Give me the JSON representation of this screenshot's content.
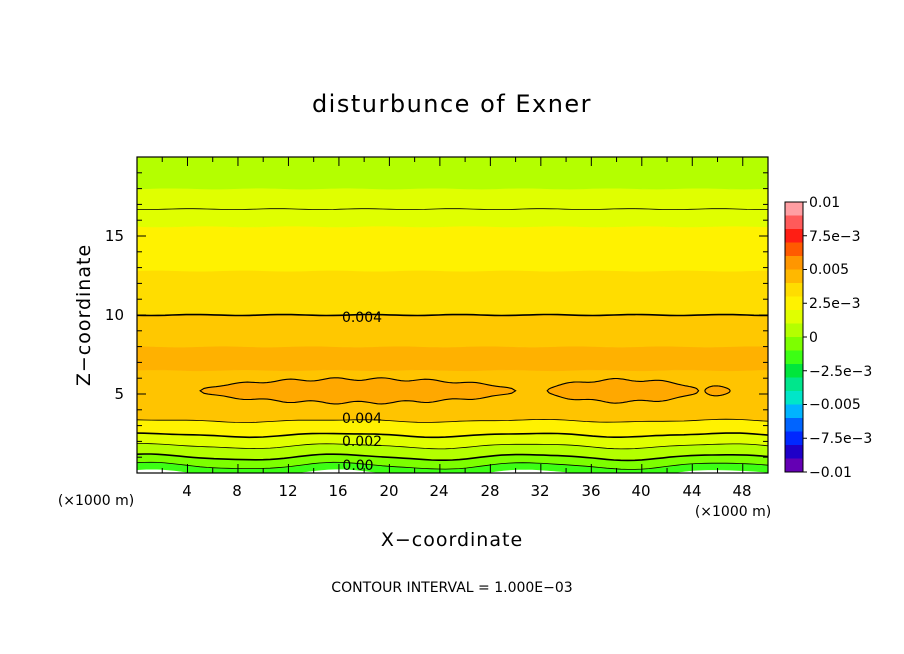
{
  "chart_data": {
    "type": "heatmap",
    "title": "disturbunce of Exner",
    "xlabel": "X−coordinate",
    "ylabel": "Z−coordinate",
    "x_unit": "(×1000 m)",
    "z_unit": "(×1000 m)",
    "xlim": [
      0,
      50
    ],
    "ylim": [
      0,
      20
    ],
    "x_ticks": [
      "4",
      "8",
      "12",
      "16",
      "20",
      "24",
      "28",
      "32",
      "36",
      "40",
      "44",
      "48"
    ],
    "y_ticks": [
      "5",
      "10",
      "15"
    ],
    "contour_interval_label": "CONTOUR INTERVAL = 1.000E−03",
    "contour_labels": [
      "0.004",
      "0.004",
      "0.002",
      "0.00"
    ],
    "colorbar": {
      "labels": [
        "0.01",
        "7.5e−3",
        "0.005",
        "2.5e−3",
        "0",
        "−2.5e−3",
        "−0.005",
        "−7.5e−3",
        "−0.01"
      ],
      "range": [
        -0.01,
        0.01
      ],
      "colors": [
        "#ff9ea2",
        "#ff5a5a",
        "#ff1e14",
        "#ff5a00",
        "#ff9600",
        "#ffb800",
        "#ffdd00",
        "#fff200",
        "#e0ff00",
        "#b4ff00",
        "#7dff00",
        "#3cff14",
        "#00e63c",
        "#00e68c",
        "#00e6c8",
        "#00b4ff",
        "#0064ff",
        "#0028ff",
        "#1e00c8",
        "#6400b4"
      ]
    },
    "field_bands": [
      {
        "z_low": 0.0,
        "z_high": 0.45,
        "color": "#3cff14"
      },
      {
        "z_low": 0.45,
        "z_high": 1.0,
        "color": "#7dff00"
      },
      {
        "z_low": 1.0,
        "z_high": 1.7,
        "color": "#b4ff00"
      },
      {
        "z_low": 1.7,
        "z_high": 2.4,
        "color": "#e0ff00"
      },
      {
        "z_low": 2.4,
        "z_high": 3.3,
        "color": "#fff200"
      },
      {
        "z_low": 3.3,
        "z_high": 6.5,
        "color": "#ffc400"
      },
      {
        "z_low": 6.5,
        "z_high": 8.0,
        "color": "#ffb100"
      },
      {
        "z_low": 8.0,
        "z_high": 10.0,
        "color": "#ffc800"
      },
      {
        "z_low": 10.0,
        "z_high": 12.8,
        "color": "#ffdd00"
      },
      {
        "z_low": 12.8,
        "z_high": 15.6,
        "color": "#fff200"
      },
      {
        "z_low": 15.6,
        "z_high": 18.0,
        "color": "#e0ff00"
      },
      {
        "z_low": 18.0,
        "z_high": 20.0,
        "color": "#b4ff00"
      }
    ],
    "max_patches": [
      {
        "x": [
          5.0,
          30.0
        ],
        "z_center": 5.2,
        "half_height": 0.75,
        "color": "#ffa800"
      },
      {
        "x": [
          32.5,
          44.5
        ],
        "z_center": 5.2,
        "half_height": 0.7,
        "color": "#ffa800"
      },
      {
        "x": [
          45.0,
          47.0
        ],
        "z_center": 5.2,
        "half_height": 0.3,
        "color": "#ffa800"
      }
    ],
    "contour_levels_z": [
      0.45,
      1.0,
      1.7,
      2.4,
      3.3,
      10.0,
      16.7
    ]
  }
}
